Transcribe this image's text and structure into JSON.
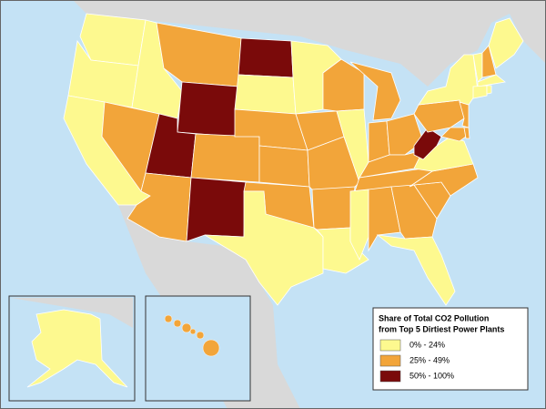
{
  "legend": {
    "title": [
      "Share of Total CO2 Pollution",
      "from  Top 5 Dirtiest Power Plants"
    ],
    "items": [
      {
        "label": "0% - 24%",
        "color": "#fdf98f"
      },
      {
        "label": "25% - 49%",
        "color": "#f2a53a"
      },
      {
        "label": "50% - 100%",
        "color": "#7a0a0a"
      }
    ]
  }
}
